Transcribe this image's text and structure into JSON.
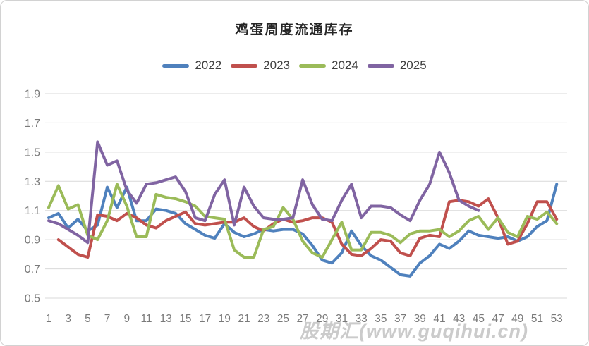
{
  "title": "鸡蛋周度流通库存",
  "watermark": "股期汇(www.guqihui.cn)",
  "chart_data": {
    "type": "line",
    "title": "鸡蛋周度流通库存",
    "xlabel": "",
    "ylabel": "",
    "x_range": [
      1,
      53
    ],
    "ylim": [
      0.5,
      1.9
    ],
    "grid": "horizontal",
    "legend_position": "top",
    "x_ticks": [
      1,
      3,
      5,
      7,
      9,
      11,
      13,
      15,
      17,
      19,
      21,
      23,
      25,
      27,
      29,
      31,
      33,
      35,
      37,
      39,
      41,
      43,
      45,
      47,
      49,
      51,
      53
    ],
    "y_ticks": [
      1.9,
      1.7,
      1.5,
      1.3,
      1.1,
      0.9,
      0.7,
      0.5
    ],
    "series": [
      {
        "name": "2022",
        "color": "#4f81bd",
        "values": [
          1.05,
          1.08,
          0.98,
          1.04,
          0.96,
          1.0,
          1.26,
          1.12,
          1.26,
          1.03,
          1.03,
          1.11,
          1.1,
          1.08,
          1.01,
          0.97,
          0.93,
          0.91,
          1.01,
          0.95,
          0.92,
          0.94,
          0.97,
          0.96,
          0.97,
          0.97,
          0.94,
          0.86,
          0.76,
          0.74,
          0.81,
          0.96,
          0.86,
          0.79,
          0.76,
          0.71,
          0.66,
          0.65,
          0.74,
          0.79,
          0.87,
          0.84,
          0.89,
          0.96,
          0.93,
          0.92,
          0.91,
          0.92,
          0.89,
          0.92,
          0.99,
          1.03,
          1.28
        ]
      },
      {
        "name": "2023",
        "color": "#c0504d",
        "values": [
          null,
          0.9,
          0.85,
          0.8,
          0.78,
          1.07,
          1.06,
          1.03,
          1.08,
          1.05,
          1.0,
          0.98,
          1.03,
          1.06,
          1.09,
          1.01,
          1.0,
          1.01,
          1.02,
          1.02,
          1.05,
          0.99,
          0.96,
          1.01,
          1.04,
          1.02,
          1.03,
          1.05,
          1.05,
          1.02,
          0.87,
          0.8,
          0.79,
          0.84,
          0.9,
          0.89,
          0.81,
          0.79,
          0.91,
          0.93,
          0.92,
          1.16,
          1.17,
          1.16,
          1.13,
          1.18,
          1.05,
          0.87,
          0.89,
          1.01,
          1.16,
          1.16,
          1.04
        ]
      },
      {
        "name": "2024",
        "color": "#9bbb59",
        "values": [
          1.12,
          1.27,
          1.11,
          1.14,
          0.93,
          0.9,
          1.03,
          1.28,
          1.13,
          0.92,
          0.92,
          1.21,
          1.19,
          1.18,
          1.16,
          1.13,
          1.06,
          1.05,
          1.04,
          0.83,
          0.78,
          0.78,
          0.97,
          0.99,
          1.12,
          1.04,
          0.89,
          0.81,
          0.78,
          0.9,
          1.02,
          0.83,
          0.83,
          0.95,
          0.95,
          0.93,
          0.88,
          0.94,
          0.96,
          0.96,
          0.97,
          0.92,
          0.96,
          1.03,
          1.06,
          0.97,
          1.05,
          0.95,
          0.92,
          1.06,
          1.04,
          1.09,
          1.01
        ]
      },
      {
        "name": "2025",
        "color": "#8064a2",
        "values": [
          1.03,
          1.01,
          0.97,
          0.93,
          0.88,
          1.57,
          1.41,
          1.44,
          1.24,
          1.15,
          1.28,
          1.29,
          1.31,
          1.33,
          1.23,
          1.05,
          1.03,
          1.21,
          1.31,
          1.0,
          1.26,
          1.13,
          1.05,
          1.04,
          1.04,
          1.05,
          1.31,
          1.14,
          1.04,
          1.03,
          1.17,
          1.28,
          1.05,
          1.13,
          1.13,
          1.12,
          1.07,
          1.03,
          1.17,
          1.28,
          1.5,
          1.36,
          1.17,
          1.13,
          1.1,
          null,
          null,
          null,
          null,
          null,
          null,
          null,
          null
        ]
      }
    ],
    "style": {
      "grid_color": "#d9d9d9",
      "axis_text_color": "#7a7a7a",
      "watermark_color": "#cbcbcb"
    }
  }
}
